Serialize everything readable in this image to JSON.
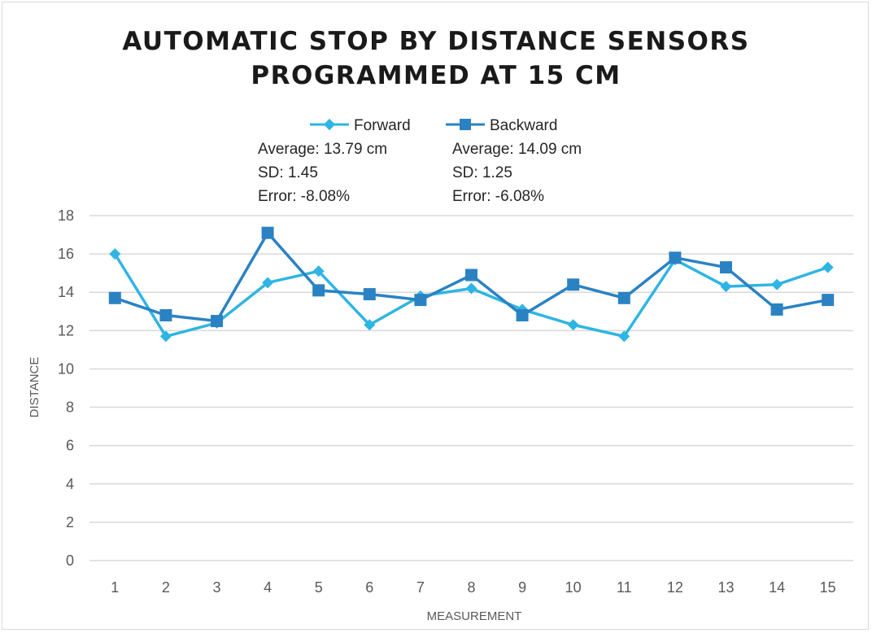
{
  "chart_data": {
    "type": "line",
    "title_lines": [
      "AUTOMATIC STOP BY DISTANCE SENSORS",
      "PROGRAMMED AT 15 CM"
    ],
    "xlabel": "MEASUREMENT",
    "ylabel": "DISTANCE",
    "ylim": [
      0,
      18
    ],
    "yticks": [
      0,
      2,
      4,
      6,
      8,
      10,
      12,
      14,
      16,
      18
    ],
    "categories": [
      "1",
      "2",
      "3",
      "4",
      "5",
      "6",
      "7",
      "8",
      "9",
      "10",
      "11",
      "12",
      "13",
      "14",
      "15"
    ],
    "grid": "horizontal",
    "legend_position": "top",
    "series": [
      {
        "name": "Forward",
        "marker": "diamond",
        "color": "#2fb5e3",
        "values": [
          16.0,
          11.7,
          12.4,
          14.5,
          15.1,
          12.3,
          13.8,
          14.2,
          13.1,
          12.3,
          11.7,
          15.7,
          14.3,
          14.4,
          15.3
        ],
        "stats": [
          "Average: 13.79 cm",
          "SD: 1.45",
          "Error: -8.08%"
        ]
      },
      {
        "name": "Backward",
        "marker": "square",
        "color": "#2a82c3",
        "values": [
          13.7,
          12.8,
          12.5,
          17.1,
          14.1,
          13.9,
          13.6,
          14.9,
          12.8,
          14.4,
          13.7,
          15.8,
          15.3,
          13.1,
          13.6
        ],
        "stats": [
          "Average: 14.09 cm",
          "SD: 1.25",
          "Error: -6.08%"
        ]
      }
    ]
  }
}
